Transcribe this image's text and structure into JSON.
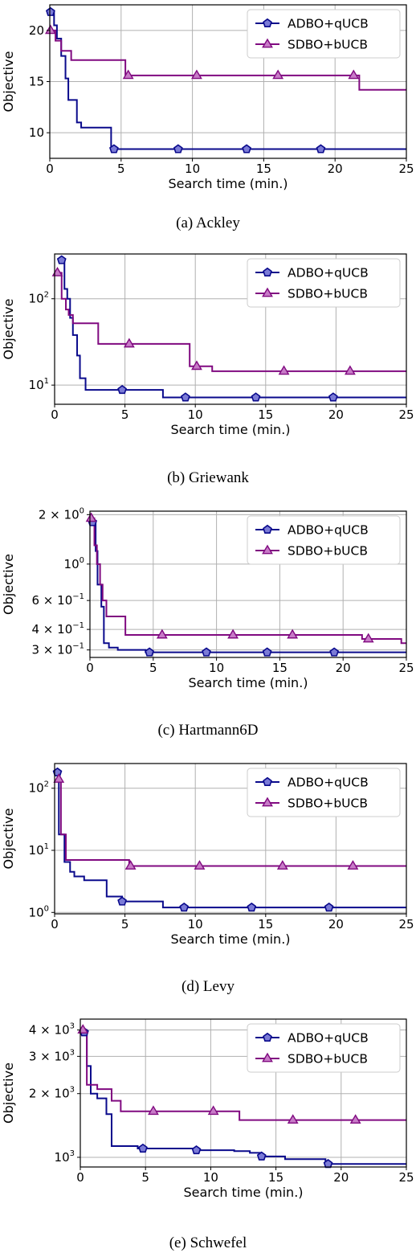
{
  "legend": [
    "ADBO+qUCB",
    "SDBO+bUCB"
  ],
  "series_colors": {
    "ADBO+qUCB": "#0a0a8c",
    "SDBO+bUCB": "#800a80"
  },
  "marker_icons": {
    "ADBO+qUCB": "pentagon-marker-icon",
    "SDBO+bUCB": "triangle-marker-icon"
  },
  "chart_data": [
    {
      "type": "line",
      "caption": "(a) Ackley",
      "xlabel": "Search time (min.)",
      "ylabel": "Objective",
      "xlim": [
        0,
        25
      ],
      "ylim": [
        7.5,
        22.5
      ],
      "yscale": "linear",
      "grid": true,
      "legend_position": "top-right",
      "x_ticks": [
        0,
        5,
        10,
        15,
        20,
        25
      ],
      "y_ticks": [
        {
          "v": 10,
          "label": "10"
        },
        {
          "v": 15,
          "label": "15"
        },
        {
          "v": 20,
          "label": "20"
        }
      ],
      "series": [
        {
          "name": "ADBO+qUCB",
          "x": [
            0.05,
            0.3,
            0.5,
            0.8,
            1.1,
            1.3,
            1.9,
            2.2,
            2.5,
            4.3,
            25
          ],
          "y": [
            21.8,
            20.5,
            19.2,
            17.5,
            15.3,
            13.2,
            11.0,
            10.5,
            10.5,
            8.4,
            8.4
          ],
          "markers_x": [
            0.05,
            4.5,
            9.0,
            13.8,
            19.0
          ],
          "markers_y": [
            21.8,
            8.4,
            8.4,
            8.4,
            8.4
          ]
        },
        {
          "name": "SDBO+bUCB",
          "x": [
            0.05,
            0.4,
            0.8,
            1.5,
            5.3,
            21.7,
            25
          ],
          "y": [
            20.0,
            19.0,
            18.0,
            17.1,
            15.6,
            14.2,
            14.2
          ],
          "markers_x": [
            0.05,
            5.5,
            10.3,
            16.0,
            21.3
          ],
          "markers_y": [
            20.0,
            15.6,
            15.6,
            15.6,
            15.6
          ]
        }
      ]
    },
    {
      "type": "line",
      "caption": "(b) Griewank",
      "xlabel": "Search time (min.)",
      "ylabel": "Objective",
      "xlim": [
        0,
        25
      ],
      "ylim": [
        6,
        330
      ],
      "yscale": "log",
      "grid": true,
      "legend_position": "top-right",
      "x_ticks": [
        0,
        5,
        10,
        15,
        20,
        25
      ],
      "y_ticks": [
        {
          "v": 10,
          "label": "10",
          "sup": "1"
        },
        {
          "v": 100,
          "label": "10",
          "sup": "2"
        }
      ],
      "series": [
        {
          "name": "ADBO+qUCB",
          "x": [
            0.5,
            0.7,
            0.9,
            1.1,
            1.3,
            1.6,
            1.8,
            2.2,
            7.7,
            25
          ],
          "y": [
            280,
            130,
            100,
            60,
            38,
            22,
            12,
            8.8,
            7.2,
            7.2
          ],
          "markers_x": [
            0.5,
            4.8,
            9.3,
            14.3,
            19.8
          ],
          "markers_y": [
            280,
            8.8,
            7.2,
            7.2,
            7.2
          ]
        },
        {
          "name": "SDBO+bUCB",
          "x": [
            0.2,
            0.5,
            0.8,
            1.0,
            1.3,
            3.1,
            9.6,
            11.2,
            25
          ],
          "y": [
            200,
            100,
            75,
            65,
            52,
            30,
            16.5,
            14.5,
            14.5
          ],
          "markers_x": [
            0.2,
            5.3,
            10.1,
            16.3,
            21.0
          ],
          "markers_y": [
            200,
            30,
            16.5,
            14.5,
            14.5
          ]
        }
      ]
    },
    {
      "type": "line",
      "caption": "(c) Hartmann6D",
      "xlabel": "Search time (min.)",
      "ylabel": "Objective",
      "xlim": [
        0,
        25
      ],
      "ylim": [
        0.27,
        2.1
      ],
      "yscale": "log",
      "grid": true,
      "legend_position": "top-right",
      "x_ticks": [
        0,
        5,
        10,
        15,
        20,
        25
      ],
      "y_ticks": [
        {
          "v": 0.3,
          "label": "3 × 10",
          "sup": "−1"
        },
        {
          "v": 0.4,
          "label": "4 × 10",
          "sup": "−1"
        },
        {
          "v": 0.6,
          "label": "6 × 10",
          "sup": "−1"
        },
        {
          "v": 1.0,
          "label": "10",
          "sup": "0"
        },
        {
          "v": 2.0,
          "label": "2 × 10",
          "sup": "0"
        }
      ],
      "series": [
        {
          "name": "ADBO+qUCB",
          "x": [
            0.2,
            0.45,
            0.6,
            0.9,
            1.1,
            1.5,
            2.2,
            4.4,
            25
          ],
          "y": [
            1.8,
            1.2,
            0.75,
            0.55,
            0.33,
            0.31,
            0.3,
            0.29,
            0.29
          ],
          "markers_x": [
            0.2,
            4.7,
            9.2,
            14.0,
            19.3
          ],
          "markers_y": [
            1.8,
            0.29,
            0.29,
            0.29,
            0.29
          ]
        },
        {
          "name": "SDBO+bUCB",
          "x": [
            0.1,
            0.35,
            0.55,
            0.8,
            1.0,
            1.3,
            2.8,
            21.5,
            24.6,
            25
          ],
          "y": [
            1.9,
            1.3,
            1.0,
            0.75,
            0.6,
            0.48,
            0.37,
            0.35,
            0.33,
            0.33
          ],
          "markers_x": [
            0.1,
            5.7,
            11.3,
            16.0,
            22.0
          ],
          "markers_y": [
            1.9,
            0.37,
            0.37,
            0.37,
            0.35
          ]
        }
      ]
    },
    {
      "type": "line",
      "caption": "(d) Levy",
      "xlabel": "Search time (min.)",
      "ylabel": "Objective",
      "xlim": [
        0,
        25
      ],
      "ylim": [
        0.95,
        250
      ],
      "yscale": "log",
      "grid": true,
      "legend_position": "top-right",
      "x_ticks": [
        0,
        5,
        10,
        15,
        20,
        25
      ],
      "y_ticks": [
        {
          "v": 1,
          "label": "10",
          "sup": "0"
        },
        {
          "v": 10,
          "label": "10",
          "sup": "1"
        },
        {
          "v": 100,
          "label": "10",
          "sup": "2"
        }
      ],
      "series": [
        {
          "name": "ADBO+qUCB",
          "x": [
            0.2,
            0.3,
            0.7,
            1.1,
            1.4,
            2.1,
            2.6,
            3.7,
            4.8,
            7.7,
            25
          ],
          "y": [
            180,
            18,
            6.5,
            4.5,
            3.8,
            3.3,
            3.3,
            1.8,
            1.5,
            1.2,
            1.2
          ],
          "markers_x": [
            0.2,
            4.8,
            9.2,
            14.0,
            19.5
          ],
          "markers_y": [
            180,
            1.5,
            1.2,
            1.2,
            1.2
          ]
        },
        {
          "name": "SDBO+bUCB",
          "x": [
            0.3,
            0.45,
            0.8,
            5.3,
            25
          ],
          "y": [
            140,
            18,
            7.0,
            5.6,
            5.6
          ],
          "markers_x": [
            0.3,
            5.4,
            10.3,
            16.2,
            21.2
          ],
          "markers_y": [
            140,
            5.6,
            5.6,
            5.6,
            5.6
          ]
        }
      ]
    },
    {
      "type": "line",
      "caption": "(e) Schwefel",
      "xlabel": "Search time (min.)",
      "ylabel": "Objective",
      "xlim": [
        0,
        25
      ],
      "ylim": [
        900,
        4500
      ],
      "yscale": "log",
      "grid": true,
      "legend_position": "top-right",
      "x_ticks": [
        0,
        5,
        10,
        15,
        20,
        25
      ],
      "y_ticks": [
        {
          "v": 1000,
          "label": "10",
          "sup": "3"
        },
        {
          "v": 2000,
          "label": "2 × 10",
          "sup": "3"
        },
        {
          "v": 3000,
          "label": "3 × 10",
          "sup": "3"
        },
        {
          "v": 4000,
          "label": "4 × 10",
          "sup": "3"
        }
      ],
      "series": [
        {
          "name": "ADBO+qUCB",
          "x": [
            0.3,
            0.5,
            0.8,
            1.3,
            2.0,
            2.4,
            4.4,
            8.8,
            11.8,
            13.0,
            13.8,
            15.7,
            18.8,
            25
          ],
          "y": [
            3900,
            2700,
            2000,
            1900,
            1600,
            1130,
            1100,
            1080,
            1070,
            1050,
            1010,
            980,
            930,
            930
          ],
          "markers_x": [
            0.3,
            4.8,
            8.9,
            13.9,
            19.0
          ],
          "markers_y": [
            3900,
            1100,
            1080,
            1010,
            930
          ]
        },
        {
          "name": "SDBO+bUCB",
          "x": [
            0.2,
            0.5,
            1.3,
            2.4,
            3.1,
            12.2,
            25
          ],
          "y": [
            4000,
            2200,
            2100,
            1850,
            1650,
            1500,
            1500
          ],
          "markers_x": [
            0.2,
            5.6,
            10.2,
            16.3,
            21.1
          ],
          "markers_y": [
            4000,
            1650,
            1650,
            1500,
            1500
          ]
        }
      ]
    }
  ]
}
